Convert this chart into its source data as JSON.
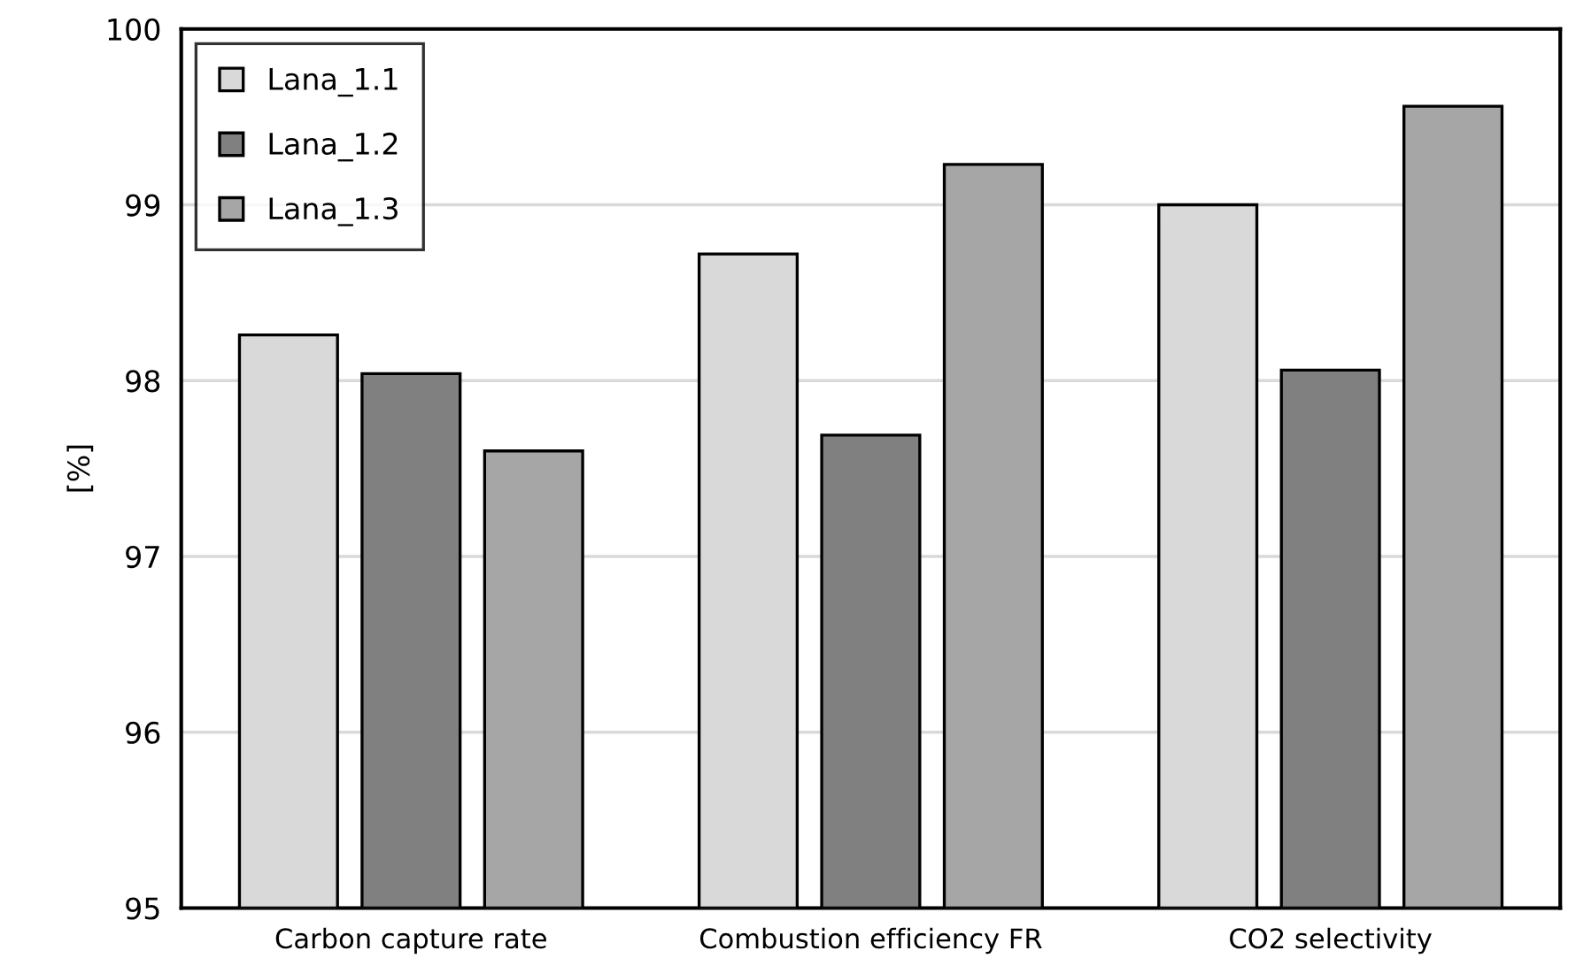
{
  "chart_data": {
    "type": "bar",
    "ylabel": "[%]",
    "categories": [
      "Carbon capture rate",
      "Combustion efficiency FR",
      "CO2 selectivity"
    ],
    "series": [
      {
        "name": "Lana_1.1",
        "color": "#d9d9d9",
        "values": [
          98.26,
          98.72,
          99.0
        ]
      },
      {
        "name": "Lana_1.2",
        "color": "#808080",
        "values": [
          98.04,
          97.69,
          98.06
        ]
      },
      {
        "name": "Lana_1.3",
        "color": "#a6a6a6",
        "values": [
          97.6,
          99.23,
          99.56
        ]
      }
    ],
    "ylim": [
      95,
      100
    ],
    "yticks": [
      95,
      96,
      97,
      98,
      99,
      100
    ],
    "grid": "y",
    "legend": "top left"
  }
}
